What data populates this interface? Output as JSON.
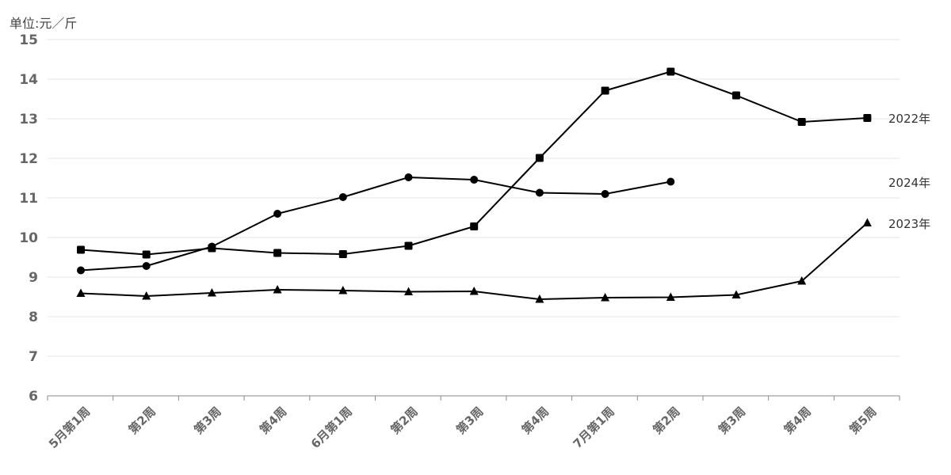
{
  "unit_label": "单位:元／斤",
  "chart_data": {
    "type": "line",
    "ylim": [
      6,
      15
    ],
    "yticks": [
      6,
      7,
      8,
      9,
      10,
      11,
      12,
      13,
      14,
      15
    ],
    "categories": [
      "5月第1周",
      "第2周",
      "第3周",
      "第4周",
      "6月第1周",
      "第2周",
      "第3周",
      "第4周",
      "7月第1周",
      "第2周",
      "第3周",
      "第4周",
      "第5周"
    ],
    "grid": true,
    "series": [
      {
        "name": "2022年",
        "marker": "square",
        "color": "#000000",
        "values": [
          9.69,
          9.57,
          9.73,
          9.61,
          9.58,
          9.79,
          10.28,
          12.01,
          13.71,
          14.19,
          13.59,
          12.92,
          13.02
        ]
      },
      {
        "name": "2023年",
        "marker": "triangle",
        "color": "#000000",
        "values": [
          8.59,
          8.52,
          8.6,
          8.68,
          8.66,
          8.63,
          8.64,
          8.44,
          8.48,
          8.49,
          8.55,
          8.9,
          10.37
        ]
      },
      {
        "name": "2024年",
        "marker": "circle",
        "color": "#000000",
        "values": [
          9.17,
          9.28,
          9.77,
          10.6,
          11.02,
          11.52,
          11.46,
          11.13,
          11.1,
          11.41,
          null,
          null,
          null
        ]
      }
    ]
  }
}
